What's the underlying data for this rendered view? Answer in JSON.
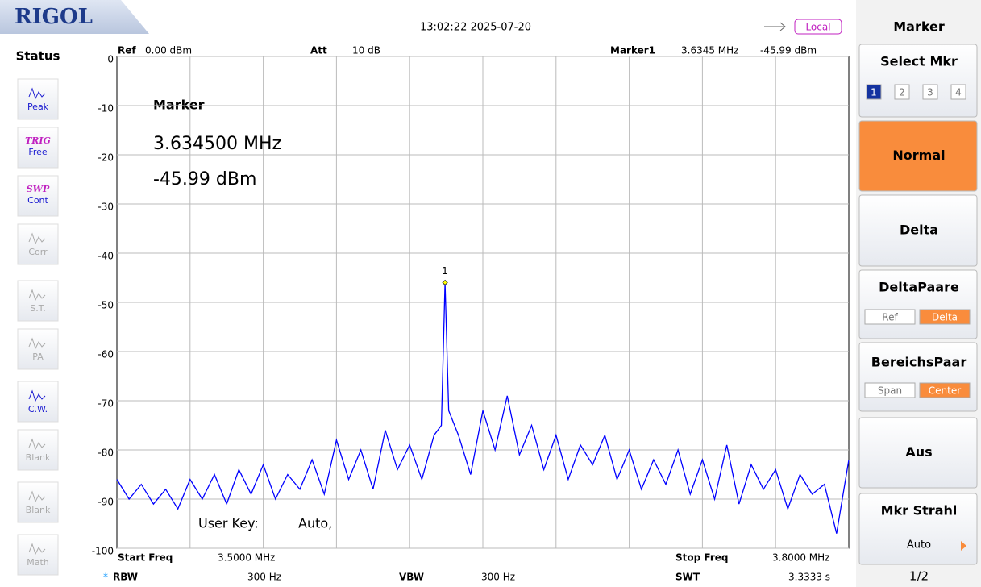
{
  "header": {
    "logo": "RIGOL",
    "datetime": "13:02:22 2025-07-20",
    "remote": "Local"
  },
  "status": {
    "title": "Status",
    "items": [
      [
        "Peak"
      ],
      [
        "TRIG",
        "Free"
      ],
      [
        "SWP",
        "Cont"
      ],
      [
        "Corr"
      ],
      [
        "S.T."
      ],
      [
        "PA"
      ],
      [
        "C.W."
      ],
      [
        "Blank"
      ],
      [
        "Blank"
      ],
      [
        "Math"
      ]
    ]
  },
  "readout": {
    "ref_label": "Ref",
    "ref": "0.00 dBm",
    "att_label": "Att",
    "att": "10 dB",
    "marker_label": "Marker1",
    "marker_freq": "3.6345 MHz",
    "marker_amp": "-45.99 dBm"
  },
  "marker_box": {
    "title": "Marker",
    "freq": "3.634500 MHz",
    "amp": "-45.99 dBm"
  },
  "user_key": {
    "label": "User Key:",
    "value": "Auto,"
  },
  "chart_data": {
    "type": "line",
    "color": "#0000ff",
    "grid": true,
    "marker_label": "1",
    "xlim": [
      3.5,
      3.8
    ],
    "ylim": [
      -100,
      0
    ],
    "yticks": [
      0,
      -10,
      -20,
      -30,
      -40,
      -50,
      -60,
      -70,
      -80,
      -90,
      -100
    ],
    "x": [
      3.5,
      3.505,
      3.51,
      3.515,
      3.52,
      3.525,
      3.53,
      3.535,
      3.54,
      3.545,
      3.55,
      3.555,
      3.56,
      3.565,
      3.57,
      3.575,
      3.58,
      3.585,
      3.59,
      3.595,
      3.6,
      3.605,
      3.61,
      3.615,
      3.62,
      3.625,
      3.63,
      3.633,
      3.6345,
      3.636,
      3.64,
      3.645,
      3.65,
      3.655,
      3.66,
      3.665,
      3.67,
      3.675,
      3.68,
      3.685,
      3.69,
      3.695,
      3.7,
      3.705,
      3.71,
      3.715,
      3.72,
      3.725,
      3.73,
      3.735,
      3.74,
      3.745,
      3.75,
      3.755,
      3.76,
      3.765,
      3.77,
      3.775,
      3.78,
      3.785,
      3.79,
      3.795,
      3.8
    ],
    "values": [
      -86,
      -90,
      -87,
      -91,
      -88,
      -92,
      -86,
      -90,
      -85,
      -91,
      -84,
      -89,
      -83,
      -90,
      -85,
      -88,
      -82,
      -89,
      -78,
      -86,
      -80,
      -88,
      -76,
      -84,
      -79,
      -86,
      -77,
      -75,
      -45.99,
      -72,
      -77,
      -85,
      -72,
      -80,
      -69,
      -81,
      -75,
      -84,
      -77,
      -86,
      -79,
      -83,
      -77,
      -86,
      -80,
      -88,
      -82,
      -87,
      -80,
      -89,
      -82,
      -90,
      -79,
      -91,
      -83,
      -88,
      -84,
      -92,
      -85,
      -89,
      -87,
      -97,
      -82
    ]
  },
  "footer": {
    "start_label": "Start Freq",
    "start": "3.5000 MHz",
    "stop_label": "Stop Freq",
    "stop": "3.8000 MHz",
    "rbw_star": "*",
    "rbw_label": "RBW",
    "rbw": "300 Hz",
    "vbw_label": "VBW",
    "vbw": "300 Hz",
    "swt_label": "SWT",
    "swt": "3.3333 s"
  },
  "menu": {
    "title": "Marker",
    "select": {
      "label": "Select Mkr",
      "options": [
        "1",
        "2",
        "3",
        "4"
      ]
    },
    "normal": "Normal",
    "delta": "Delta",
    "delta_pair": {
      "label": "DeltaPaare",
      "options": [
        "Ref",
        "Delta"
      ]
    },
    "span_pair": {
      "label": "BereichsPaar",
      "options": [
        "Span",
        "Center"
      ]
    },
    "off": "Aus",
    "line": {
      "label": "Mkr Strahl",
      "value": "Auto"
    },
    "page": "1/2"
  }
}
